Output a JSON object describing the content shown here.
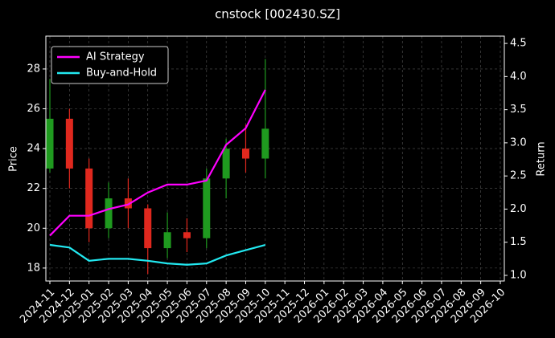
{
  "chart_data": {
    "type": "candlestick",
    "title": "cnstock [002430.SZ]",
    "ylabel": "Price",
    "y2label": "Return",
    "x": [
      "2024-11",
      "2024-12",
      "2025-01",
      "2025-02",
      "2025-03",
      "2025-04",
      "2025-05",
      "2025-06",
      "2025-07",
      "2025-08",
      "2025-09",
      "2025-10"
    ],
    "open": [
      23,
      25.5,
      23,
      20,
      21.5,
      21,
      19,
      19.8,
      19.5,
      22.5,
      24,
      23.5
    ],
    "high": [
      27.5,
      26,
      23.5,
      22.3,
      22.5,
      21.2,
      20.8,
      20.5,
      23,
      24.5,
      25.2,
      28.5
    ],
    "low": [
      22.8,
      22,
      19.3,
      19.5,
      20,
      17.7,
      18.5,
      18.8,
      19,
      21.5,
      22.8,
      22.5
    ],
    "close": [
      25.5,
      23,
      20,
      21.5,
      21,
      19,
      19.8,
      19.5,
      22.5,
      24,
      23.5,
      25
    ],
    "up_color": "#1f9a1f",
    "down_color": "#e0281e",
    "series": [
      {
        "name": "AI Strategy",
        "color": "#ff00ff",
        "axis": "y2",
        "values": [
          1.6,
          1.9,
          1.9,
          2.0,
          2.07,
          2.25,
          2.37,
          2.37,
          2.43,
          2.97,
          3.22,
          3.8
        ]
      },
      {
        "name": "Buy-and-Hold",
        "color": "#22e8f0",
        "axis": "y2",
        "values": [
          1.46,
          1.42,
          1.22,
          1.25,
          1.25,
          1.22,
          1.18,
          1.16,
          1.18,
          1.3,
          1.38,
          1.46
        ]
      }
    ],
    "xlim": [
      "2024-11",
      "2026-10"
    ],
    "xticks": [
      "2024-11",
      "2024-12",
      "2025-01",
      "2025-02",
      "2025-03",
      "2025-04",
      "2025-05",
      "2025-06",
      "2025-07",
      "2025-08",
      "2025-09",
      "2025-10",
      "2025-11",
      "2025-12",
      "2026-01",
      "2026-02",
      "2026-03",
      "2026-04",
      "2026-05",
      "2026-06",
      "2026-07",
      "2026-08",
      "2026-09",
      "2026-10"
    ],
    "ylim": [
      17.35,
      29.65
    ],
    "yticks": [
      18,
      20,
      22,
      24,
      26,
      28
    ],
    "y2lim": [
      0.915,
      4.61
    ],
    "y2ticks": [
      {
        "value": 1,
        "label": "1.0"
      },
      {
        "value": 1.5,
        "label": "1.5"
      },
      {
        "value": 2,
        "label": "2.0"
      },
      {
        "value": 2.5,
        "label": "2.5"
      },
      {
        "value": 3,
        "label": "3.0"
      },
      {
        "value": 3.5,
        "label": "3.5"
      },
      {
        "value": 4,
        "label": "4.0"
      },
      {
        "value": 4.5,
        "label": "4.5"
      }
    ],
    "grid": true,
    "legend": "upper left"
  }
}
